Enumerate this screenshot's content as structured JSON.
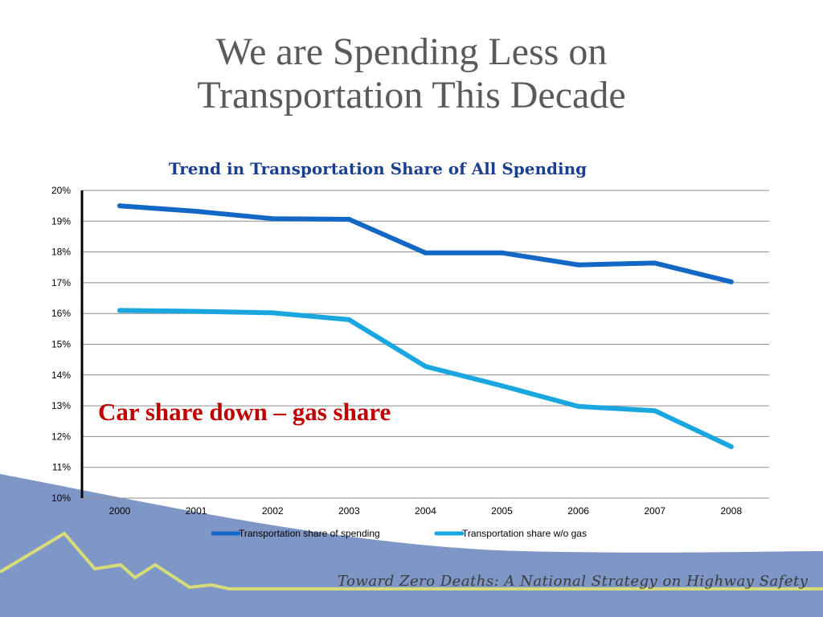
{
  "slide": {
    "title_line1": "We are Spending Less on",
    "title_line2": "Transportation This Decade",
    "annotation": "Car share down – gas share",
    "footer": "Toward Zero Deaths: A National Strategy on Highway Safety"
  },
  "colors": {
    "series1": "#1268c4",
    "series2": "#1aa7e0",
    "annotation": "#c00000",
    "chart_title": "#1a3f8f",
    "wave": "#7f97c6",
    "footer_line": "#d7dc7a"
  },
  "chart_data": {
    "type": "line",
    "title": "Trend in Transportation Share of All Spending",
    "xlabel": "",
    "ylabel": "",
    "x": [
      "2000",
      "2001",
      "2002",
      "2003",
      "2004",
      "2005",
      "2006",
      "2007",
      "2008"
    ],
    "yticks": [
      "10%",
      "11%",
      "12%",
      "13%",
      "14%",
      "15%",
      "16%",
      "17%",
      "18%",
      "19%",
      "20%"
    ],
    "ylim": [
      10,
      20
    ],
    "grid": true,
    "legend_position": "bottom",
    "series": [
      {
        "name": "Transportation share of spending",
        "values": [
          19.5,
          19.32,
          19.08,
          19.06,
          17.97,
          17.97,
          17.58,
          17.64,
          17.03
        ]
      },
      {
        "name": "Transportation share w/o gas",
        "values": [
          16.1,
          16.07,
          16.02,
          15.8,
          14.28,
          13.65,
          12.98,
          12.84,
          11.67
        ]
      }
    ]
  }
}
